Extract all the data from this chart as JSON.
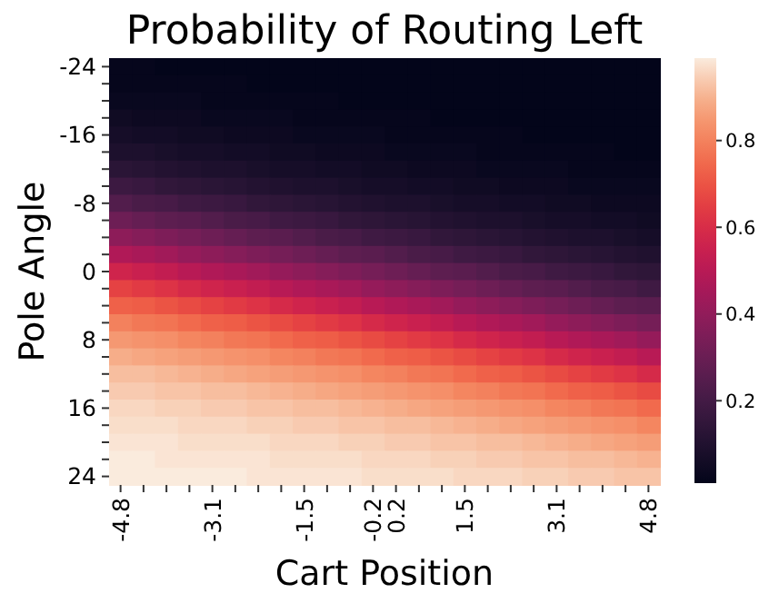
{
  "chart_data": {
    "type": "heatmap",
    "title": "Probability of Routing Left",
    "xlabel": "Cart Position",
    "ylabel": "Pole Angle",
    "categories": [
      "-4.8",
      null,
      null,
      null,
      "-3.1",
      null,
      null,
      null,
      "-1.5",
      null,
      null,
      "-0.2",
      "0.2",
      null,
      null,
      "1.5",
      null,
      null,
      null,
      "3.1",
      null,
      null,
      null,
      "4.8"
    ],
    "y_categories": [
      "-24",
      null,
      null,
      null,
      "-16",
      null,
      null,
      null,
      "-8",
      null,
      null,
      null,
      "0",
      null,
      null,
      null,
      "8",
      null,
      null,
      null,
      "16",
      null,
      null,
      null,
      "24"
    ],
    "clim": [
      0.01,
      0.99
    ],
    "cticks": [
      0.2,
      0.4,
      0.6,
      0.8
    ],
    "cells": [
      [
        0.02,
        0.02,
        0.01,
        0.01,
        0.01,
        0.01,
        0.01,
        0.01,
        0.01,
        0.01,
        0.01,
        0.01,
        0.01,
        0.01,
        0.01,
        0.01,
        0.01,
        0.01,
        0.01,
        0.01,
        0.01,
        0.01,
        0.01,
        0.01
      ],
      [
        0.02,
        0.02,
        0.02,
        0.02,
        0.02,
        0.02,
        0.01,
        0.01,
        0.01,
        0.01,
        0.01,
        0.01,
        0.01,
        0.01,
        0.01,
        0.01,
        0.01,
        0.01,
        0.01,
        0.01,
        0.01,
        0.01,
        0.01,
        0.01
      ],
      [
        0.03,
        0.03,
        0.03,
        0.03,
        0.02,
        0.02,
        0.02,
        0.02,
        0.02,
        0.02,
        0.01,
        0.01,
        0.01,
        0.01,
        0.01,
        0.01,
        0.01,
        0.01,
        0.01,
        0.01,
        0.01,
        0.01,
        0.01,
        0.01
      ],
      [
        0.05,
        0.04,
        0.04,
        0.04,
        0.03,
        0.03,
        0.03,
        0.03,
        0.02,
        0.02,
        0.02,
        0.02,
        0.02,
        0.02,
        0.01,
        0.01,
        0.01,
        0.01,
        0.01,
        0.01,
        0.01,
        0.01,
        0.01,
        0.01
      ],
      [
        0.07,
        0.06,
        0.06,
        0.05,
        0.05,
        0.04,
        0.04,
        0.04,
        0.03,
        0.03,
        0.03,
        0.03,
        0.02,
        0.02,
        0.02,
        0.02,
        0.02,
        0.02,
        0.01,
        0.01,
        0.01,
        0.01,
        0.01,
        0.01
      ],
      [
        0.09,
        0.09,
        0.08,
        0.07,
        0.07,
        0.06,
        0.06,
        0.05,
        0.05,
        0.04,
        0.04,
        0.04,
        0.03,
        0.03,
        0.03,
        0.03,
        0.02,
        0.02,
        0.02,
        0.02,
        0.02,
        0.02,
        0.01,
        0.01
      ],
      [
        0.13,
        0.12,
        0.11,
        0.1,
        0.09,
        0.09,
        0.08,
        0.07,
        0.07,
        0.06,
        0.06,
        0.05,
        0.05,
        0.04,
        0.04,
        0.04,
        0.03,
        0.03,
        0.03,
        0.03,
        0.02,
        0.02,
        0.02,
        0.02
      ],
      [
        0.18,
        0.17,
        0.15,
        0.14,
        0.13,
        0.12,
        0.11,
        0.1,
        0.09,
        0.09,
        0.08,
        0.07,
        0.07,
        0.06,
        0.06,
        0.05,
        0.05,
        0.04,
        0.04,
        0.04,
        0.03,
        0.03,
        0.03,
        0.03
      ],
      [
        0.24,
        0.22,
        0.21,
        0.19,
        0.18,
        0.17,
        0.15,
        0.14,
        0.13,
        0.12,
        0.11,
        0.1,
        0.09,
        0.09,
        0.08,
        0.07,
        0.07,
        0.06,
        0.06,
        0.05,
        0.05,
        0.04,
        0.04,
        0.04
      ],
      [
        0.31,
        0.29,
        0.27,
        0.26,
        0.24,
        0.22,
        0.21,
        0.19,
        0.18,
        0.17,
        0.15,
        0.14,
        0.13,
        0.12,
        0.11,
        0.1,
        0.09,
        0.09,
        0.08,
        0.07,
        0.07,
        0.06,
        0.06,
        0.05
      ],
      [
        0.39,
        0.37,
        0.35,
        0.33,
        0.31,
        0.29,
        0.27,
        0.26,
        0.24,
        0.22,
        0.21,
        0.19,
        0.18,
        0.17,
        0.15,
        0.14,
        0.13,
        0.12,
        0.11,
        0.1,
        0.09,
        0.09,
        0.08,
        0.07
      ],
      [
        0.48,
        0.46,
        0.44,
        0.41,
        0.39,
        0.37,
        0.35,
        0.33,
        0.31,
        0.29,
        0.27,
        0.26,
        0.24,
        0.22,
        0.21,
        0.19,
        0.18,
        0.17,
        0.15,
        0.14,
        0.13,
        0.12,
        0.11,
        0.1
      ],
      [
        0.57,
        0.55,
        0.53,
        0.5,
        0.48,
        0.46,
        0.44,
        0.41,
        0.39,
        0.37,
        0.35,
        0.33,
        0.31,
        0.29,
        0.27,
        0.26,
        0.24,
        0.22,
        0.21,
        0.19,
        0.18,
        0.17,
        0.15,
        0.14
      ],
      [
        0.66,
        0.64,
        0.62,
        0.59,
        0.57,
        0.55,
        0.53,
        0.5,
        0.48,
        0.46,
        0.44,
        0.41,
        0.39,
        0.37,
        0.35,
        0.33,
        0.31,
        0.29,
        0.27,
        0.26,
        0.24,
        0.22,
        0.21,
        0.19
      ],
      [
        0.73,
        0.72,
        0.7,
        0.68,
        0.66,
        0.64,
        0.62,
        0.59,
        0.57,
        0.55,
        0.53,
        0.5,
        0.48,
        0.46,
        0.44,
        0.41,
        0.39,
        0.37,
        0.35,
        0.33,
        0.31,
        0.29,
        0.27,
        0.26
      ],
      [
        0.8,
        0.78,
        0.77,
        0.75,
        0.73,
        0.72,
        0.7,
        0.68,
        0.66,
        0.64,
        0.62,
        0.59,
        0.57,
        0.55,
        0.53,
        0.5,
        0.48,
        0.46,
        0.44,
        0.41,
        0.39,
        0.37,
        0.35,
        0.33
      ],
      [
        0.85,
        0.84,
        0.83,
        0.81,
        0.8,
        0.78,
        0.77,
        0.75,
        0.73,
        0.72,
        0.7,
        0.68,
        0.66,
        0.64,
        0.62,
        0.59,
        0.57,
        0.55,
        0.53,
        0.5,
        0.48,
        0.46,
        0.44,
        0.41
      ],
      [
        0.89,
        0.88,
        0.87,
        0.86,
        0.85,
        0.84,
        0.83,
        0.81,
        0.8,
        0.78,
        0.77,
        0.75,
        0.73,
        0.72,
        0.7,
        0.68,
        0.66,
        0.64,
        0.62,
        0.59,
        0.57,
        0.55,
        0.53,
        0.5
      ],
      [
        0.92,
        0.92,
        0.91,
        0.9,
        0.89,
        0.88,
        0.87,
        0.86,
        0.85,
        0.84,
        0.83,
        0.81,
        0.8,
        0.78,
        0.77,
        0.75,
        0.73,
        0.72,
        0.7,
        0.68,
        0.66,
        0.64,
        0.62,
        0.59
      ],
      [
        0.94,
        0.94,
        0.93,
        0.93,
        0.92,
        0.92,
        0.91,
        0.9,
        0.89,
        0.88,
        0.87,
        0.86,
        0.85,
        0.84,
        0.83,
        0.81,
        0.8,
        0.78,
        0.77,
        0.75,
        0.73,
        0.72,
        0.7,
        0.68
      ],
      [
        0.96,
        0.96,
        0.95,
        0.95,
        0.94,
        0.94,
        0.93,
        0.93,
        0.92,
        0.92,
        0.91,
        0.9,
        0.89,
        0.88,
        0.87,
        0.86,
        0.85,
        0.84,
        0.83,
        0.81,
        0.8,
        0.78,
        0.77,
        0.75
      ],
      [
        0.97,
        0.97,
        0.97,
        0.96,
        0.96,
        0.96,
        0.95,
        0.95,
        0.94,
        0.94,
        0.93,
        0.93,
        0.92,
        0.92,
        0.91,
        0.9,
        0.89,
        0.88,
        0.87,
        0.86,
        0.85,
        0.84,
        0.83,
        0.81
      ],
      [
        0.98,
        0.98,
        0.98,
        0.97,
        0.97,
        0.97,
        0.97,
        0.96,
        0.96,
        0.96,
        0.95,
        0.95,
        0.94,
        0.94,
        0.93,
        0.93,
        0.92,
        0.92,
        0.91,
        0.9,
        0.89,
        0.88,
        0.87,
        0.86
      ],
      [
        0.99,
        0.99,
        0.98,
        0.98,
        0.98,
        0.98,
        0.98,
        0.97,
        0.97,
        0.97,
        0.97,
        0.96,
        0.96,
        0.96,
        0.95,
        0.95,
        0.94,
        0.94,
        0.93,
        0.93,
        0.92,
        0.92,
        0.91,
        0.9
      ],
      [
        0.99,
        0.99,
        0.99,
        0.99,
        0.99,
        0.99,
        0.98,
        0.98,
        0.98,
        0.98,
        0.98,
        0.97,
        0.97,
        0.97,
        0.97,
        0.96,
        0.96,
        0.96,
        0.95,
        0.95,
        0.94,
        0.94,
        0.93,
        0.93
      ]
    ]
  }
}
